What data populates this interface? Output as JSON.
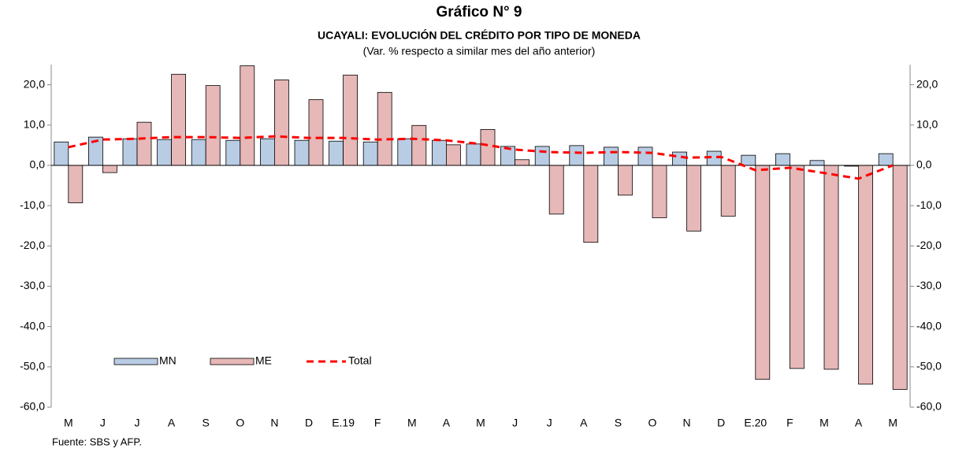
{
  "chart_data": {
    "type": "bar",
    "title": "Gráfico N° 9",
    "subtitle": "UCAYALI: EVOLUCIÓN DEL CRÉDITO POR TIPO DE MONEDA",
    "note": "(Var. % respecto a similar mes del año anterior)",
    "source": "Fuente: SBS y AFP.",
    "categories": [
      "M",
      "J",
      "J",
      "A",
      "S",
      "O",
      "N",
      "D",
      "E.19",
      "F",
      "M",
      "A",
      "M",
      "J",
      "J",
      "A",
      "S",
      "O",
      "N",
      "D",
      "E.20",
      "F",
      "M",
      "A",
      "M"
    ],
    "series": [
      {
        "name": "MN",
        "type": "bar",
        "color": "#b8cce4",
        "values": [
          5.8,
          7.0,
          6.6,
          6.4,
          6.4,
          6.2,
          6.6,
          6.2,
          6.0,
          5.8,
          6.6,
          6.2,
          5.3,
          4.7,
          4.7,
          4.9,
          4.5,
          4.5,
          3.3,
          3.5,
          2.5,
          2.9,
          1.2,
          -0.2,
          2.9
        ]
      },
      {
        "name": "ME",
        "type": "bar",
        "color": "#e6b8b7",
        "values": [
          -9.3,
          -1.8,
          10.7,
          22.6,
          19.8,
          24.7,
          21.2,
          16.3,
          22.4,
          18.1,
          9.9,
          5.1,
          8.9,
          1.4,
          -12.1,
          -19.1,
          -7.4,
          -13.0,
          -16.3,
          -12.6,
          -53.1,
          -50.4,
          -50.6,
          -54.3,
          -55.6
        ]
      },
      {
        "name": "Total",
        "type": "line",
        "color": "#ff0000",
        "values": [
          4.5,
          6.4,
          6.6,
          7.0,
          7.0,
          6.8,
          7.2,
          6.8,
          6.8,
          6.4,
          6.6,
          6.2,
          5.3,
          3.9,
          3.3,
          3.1,
          3.3,
          3.1,
          1.9,
          2.1,
          -1.2,
          -0.6,
          -1.9,
          -3.3,
          0
        ]
      }
    ],
    "ylim": [
      -60,
      25
    ],
    "yticks": [
      {
        "value": -60,
        "label": "-60,0"
      },
      {
        "value": -50,
        "label": "-50,0"
      },
      {
        "value": -40,
        "label": "-40,0"
      },
      {
        "value": -30,
        "label": "-30,0"
      },
      {
        "value": -20,
        "label": "-20,0"
      },
      {
        "value": -10,
        "label": "-10,0"
      },
      {
        "value": 0,
        "label": "0,0"
      },
      {
        "value": 10,
        "label": "10,0"
      },
      {
        "value": 20,
        "label": "20,0"
      }
    ],
    "y2lim": [
      -60,
      25
    ],
    "y2ticks": [
      {
        "value": -60,
        "label": "-60,0"
      },
      {
        "value": -50,
        "label": "-50,0"
      },
      {
        "value": -40,
        "label": "-40,0"
      },
      {
        "value": -30,
        "label": "-30,0"
      },
      {
        "value": -20,
        "label": "-20,0"
      },
      {
        "value": -10,
        "label": "-10,0"
      },
      {
        "value": 0,
        "label": "0,0"
      },
      {
        "value": 10,
        "label": "10,0"
      },
      {
        "value": 20,
        "label": "20,0"
      }
    ],
    "legend": "lower left"
  }
}
